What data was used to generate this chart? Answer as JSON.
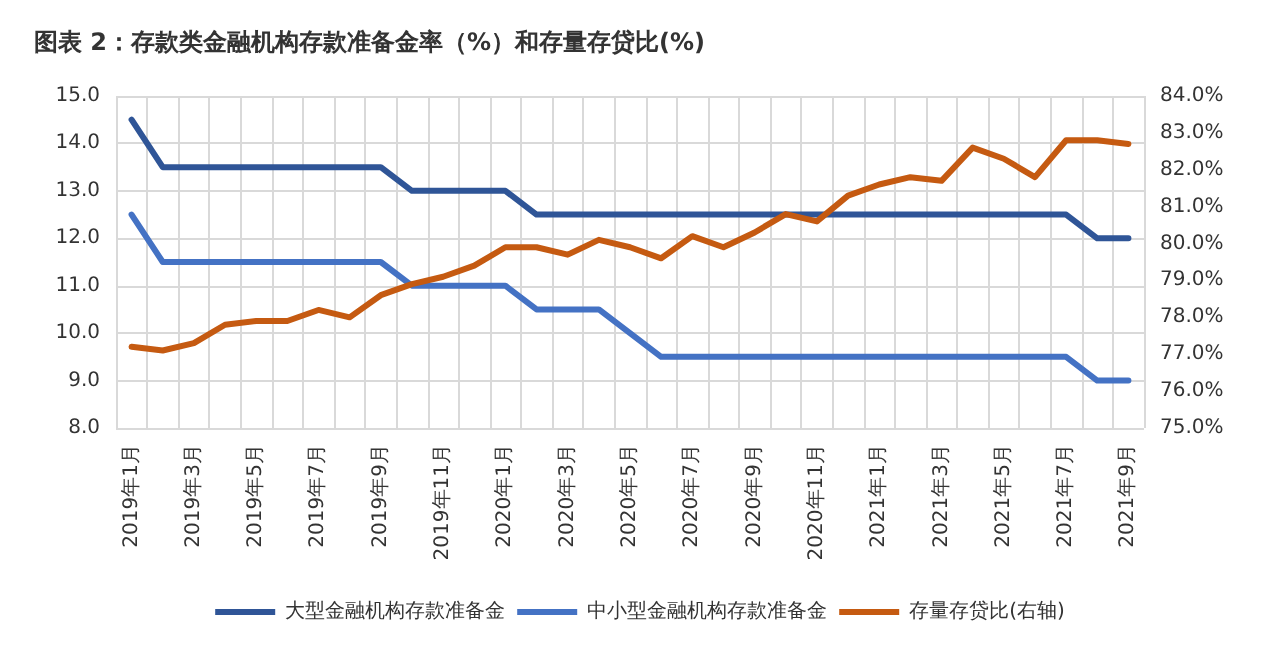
{
  "chart_data": {
    "type": "line",
    "title": "图表 2：存款类金融机构存款准备金率（%）和存量存贷比(%)",
    "categories": [
      "2019年1月",
      null,
      "2019年3月",
      null,
      "2019年5月",
      null,
      "2019年7月",
      null,
      "2019年9月",
      null,
      "2019年11月",
      null,
      "2020年1月",
      null,
      "2020年3月",
      null,
      "2020年5月",
      null,
      "2020年7月",
      null,
      "2020年9月",
      null,
      "2020年11月",
      null,
      "2021年1月",
      null,
      "2021年3月",
      null,
      "2021年5月",
      null,
      "2021年7月",
      null,
      "2021年9月"
    ],
    "series": [
      {
        "name": "大型金融机构存款准备金",
        "color": "#2f5597",
        "values": [
          14.5,
          13.5,
          13.5,
          13.5,
          13.5,
          13.5,
          13.5,
          13.5,
          13.5,
          13.0,
          13.0,
          13.0,
          13.0,
          12.5,
          12.5,
          12.5,
          12.5,
          12.5,
          12.5,
          12.5,
          12.5,
          12.5,
          12.5,
          12.5,
          12.5,
          12.5,
          12.5,
          12.5,
          12.5,
          12.5,
          12.5,
          12.0,
          12.0
        ]
      },
      {
        "name": "中小型金融机构存款准备金",
        "color": "#4472c4",
        "values": [
          12.5,
          11.5,
          11.5,
          11.5,
          11.5,
          11.5,
          11.5,
          11.5,
          11.5,
          11.0,
          11.0,
          11.0,
          11.0,
          10.5,
          10.5,
          10.5,
          10.0,
          9.5,
          9.5,
          9.5,
          9.5,
          9.5,
          9.5,
          9.5,
          9.5,
          9.5,
          9.5,
          9.5,
          9.5,
          9.5,
          9.5,
          9.0,
          9.0
        ]
      },
      {
        "name": "存量存贷比(右轴)",
        "color": "#c55a11",
        "axis": "y2",
        "values": [
          77.2,
          77.1,
          77.3,
          77.8,
          77.9,
          77.9,
          78.2,
          78.0,
          78.6,
          78.9,
          79.1,
          79.4,
          79.9,
          79.9,
          79.7,
          80.1,
          79.9,
          79.6,
          80.2,
          79.9,
          80.3,
          80.8,
          80.6,
          81.3,
          81.6,
          81.8,
          81.7,
          82.6,
          82.3,
          81.8,
          82.8,
          82.8,
          82.7
        ]
      }
    ],
    "ylim": [
      8,
      15
    ],
    "yticks": [
      {
        "value": 8,
        "label": "8.0"
      },
      {
        "value": 9,
        "label": "9.0"
      },
      {
        "value": 10,
        "label": "10.0"
      },
      {
        "value": 11,
        "label": "11.0"
      },
      {
        "value": 12,
        "label": "12.0"
      },
      {
        "value": 13,
        "label": "13.0"
      },
      {
        "value": 14,
        "label": "14.0"
      },
      {
        "value": 15,
        "label": "15.0"
      }
    ],
    "y2lim": [
      75,
      84
    ],
    "y2ticks": [
      {
        "value": 75,
        "label": "75.0%"
      },
      {
        "value": 76,
        "label": "76.0%"
      },
      {
        "value": 77,
        "label": "77.0%"
      },
      {
        "value": 78,
        "label": "78.0%"
      },
      {
        "value": 79,
        "label": "79.0%"
      },
      {
        "value": 80,
        "label": "80.0%"
      },
      {
        "value": 81,
        "label": "81.0%"
      },
      {
        "value": 82,
        "label": "82.0%"
      },
      {
        "value": 83,
        "label": "83.0%"
      },
      {
        "value": 84,
        "label": "84.0%"
      }
    ],
    "grid": true,
    "legend": "bottom",
    "marker": "none",
    "line_style": "solid"
  }
}
